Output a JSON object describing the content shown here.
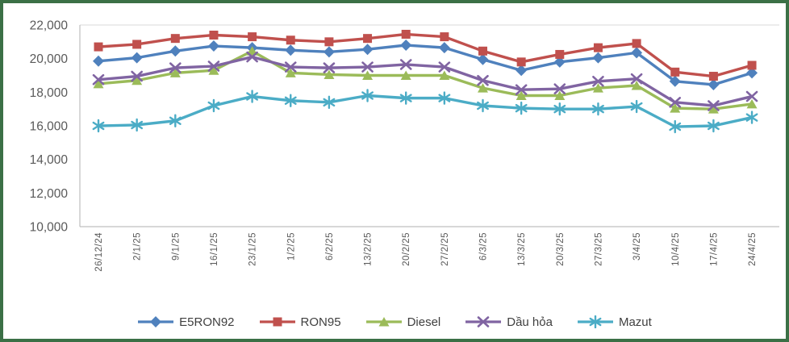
{
  "chart_data": {
    "type": "line",
    "title": "",
    "xlabel": "",
    "ylabel": "",
    "categories": [
      "26/12/24",
      "2/1/25",
      "9/1/25",
      "16/1/25",
      "23/1/25",
      "1/2/25",
      "6/2/25",
      "13/2/25",
      "20/2/25",
      "27/2/25",
      "6/3/25",
      "13/3/25",
      "20/3/25",
      "27/3/25",
      "3/4/25",
      "10/4/25",
      "17/4/25",
      "24/4/25"
    ],
    "series": [
      {
        "name": "E5RON92",
        "color": "#4F81BD",
        "marker": "diamond",
        "values": [
          19850,
          20050,
          20450,
          20750,
          20650,
          20500,
          20400,
          20550,
          20800,
          20650,
          19950,
          19300,
          19800,
          20050,
          20350,
          18650,
          18450,
          19150
        ]
      },
      {
        "name": "RON95",
        "color": "#C0504D",
        "marker": "square",
        "values": [
          20700,
          20850,
          21200,
          21400,
          21300,
          21100,
          21000,
          21200,
          21450,
          21300,
          20450,
          19800,
          20250,
          20650,
          20900,
          19200,
          18950,
          19600
        ]
      },
      {
        "name": "Diesel",
        "color": "#9BBB59",
        "marker": "triangle",
        "values": [
          18500,
          18700,
          19150,
          19300,
          20450,
          19150,
          19050,
          19000,
          19000,
          19000,
          18250,
          17800,
          17800,
          18250,
          18400,
          17050,
          17000,
          17300
        ]
      },
      {
        "name": "Dầu hỏa",
        "color": "#8064A2",
        "marker": "x",
        "values": [
          18750,
          18950,
          19450,
          19550,
          20100,
          19500,
          19450,
          19500,
          19650,
          19500,
          18700,
          18150,
          18200,
          18650,
          18800,
          17400,
          17200,
          17750
        ]
      },
      {
        "name": "Mazut",
        "color": "#4BACC6",
        "marker": "star",
        "values": [
          16000,
          16050,
          16300,
          17200,
          17750,
          17500,
          17400,
          17800,
          17650,
          17650,
          17200,
          17050,
          17000,
          17000,
          17150,
          15950,
          16000,
          16500
        ]
      }
    ],
    "ylim": [
      10000,
      22000
    ],
    "ytick_step": 2000,
    "grid": false,
    "legend_position": "bottom",
    "axis_color": "#bfbfbf",
    "top_border_color": "#d9d9d9",
    "tick_label_color": "#595959",
    "legend_text_color": "#3f3f3f",
    "frame_border_color": "#3b7046"
  }
}
